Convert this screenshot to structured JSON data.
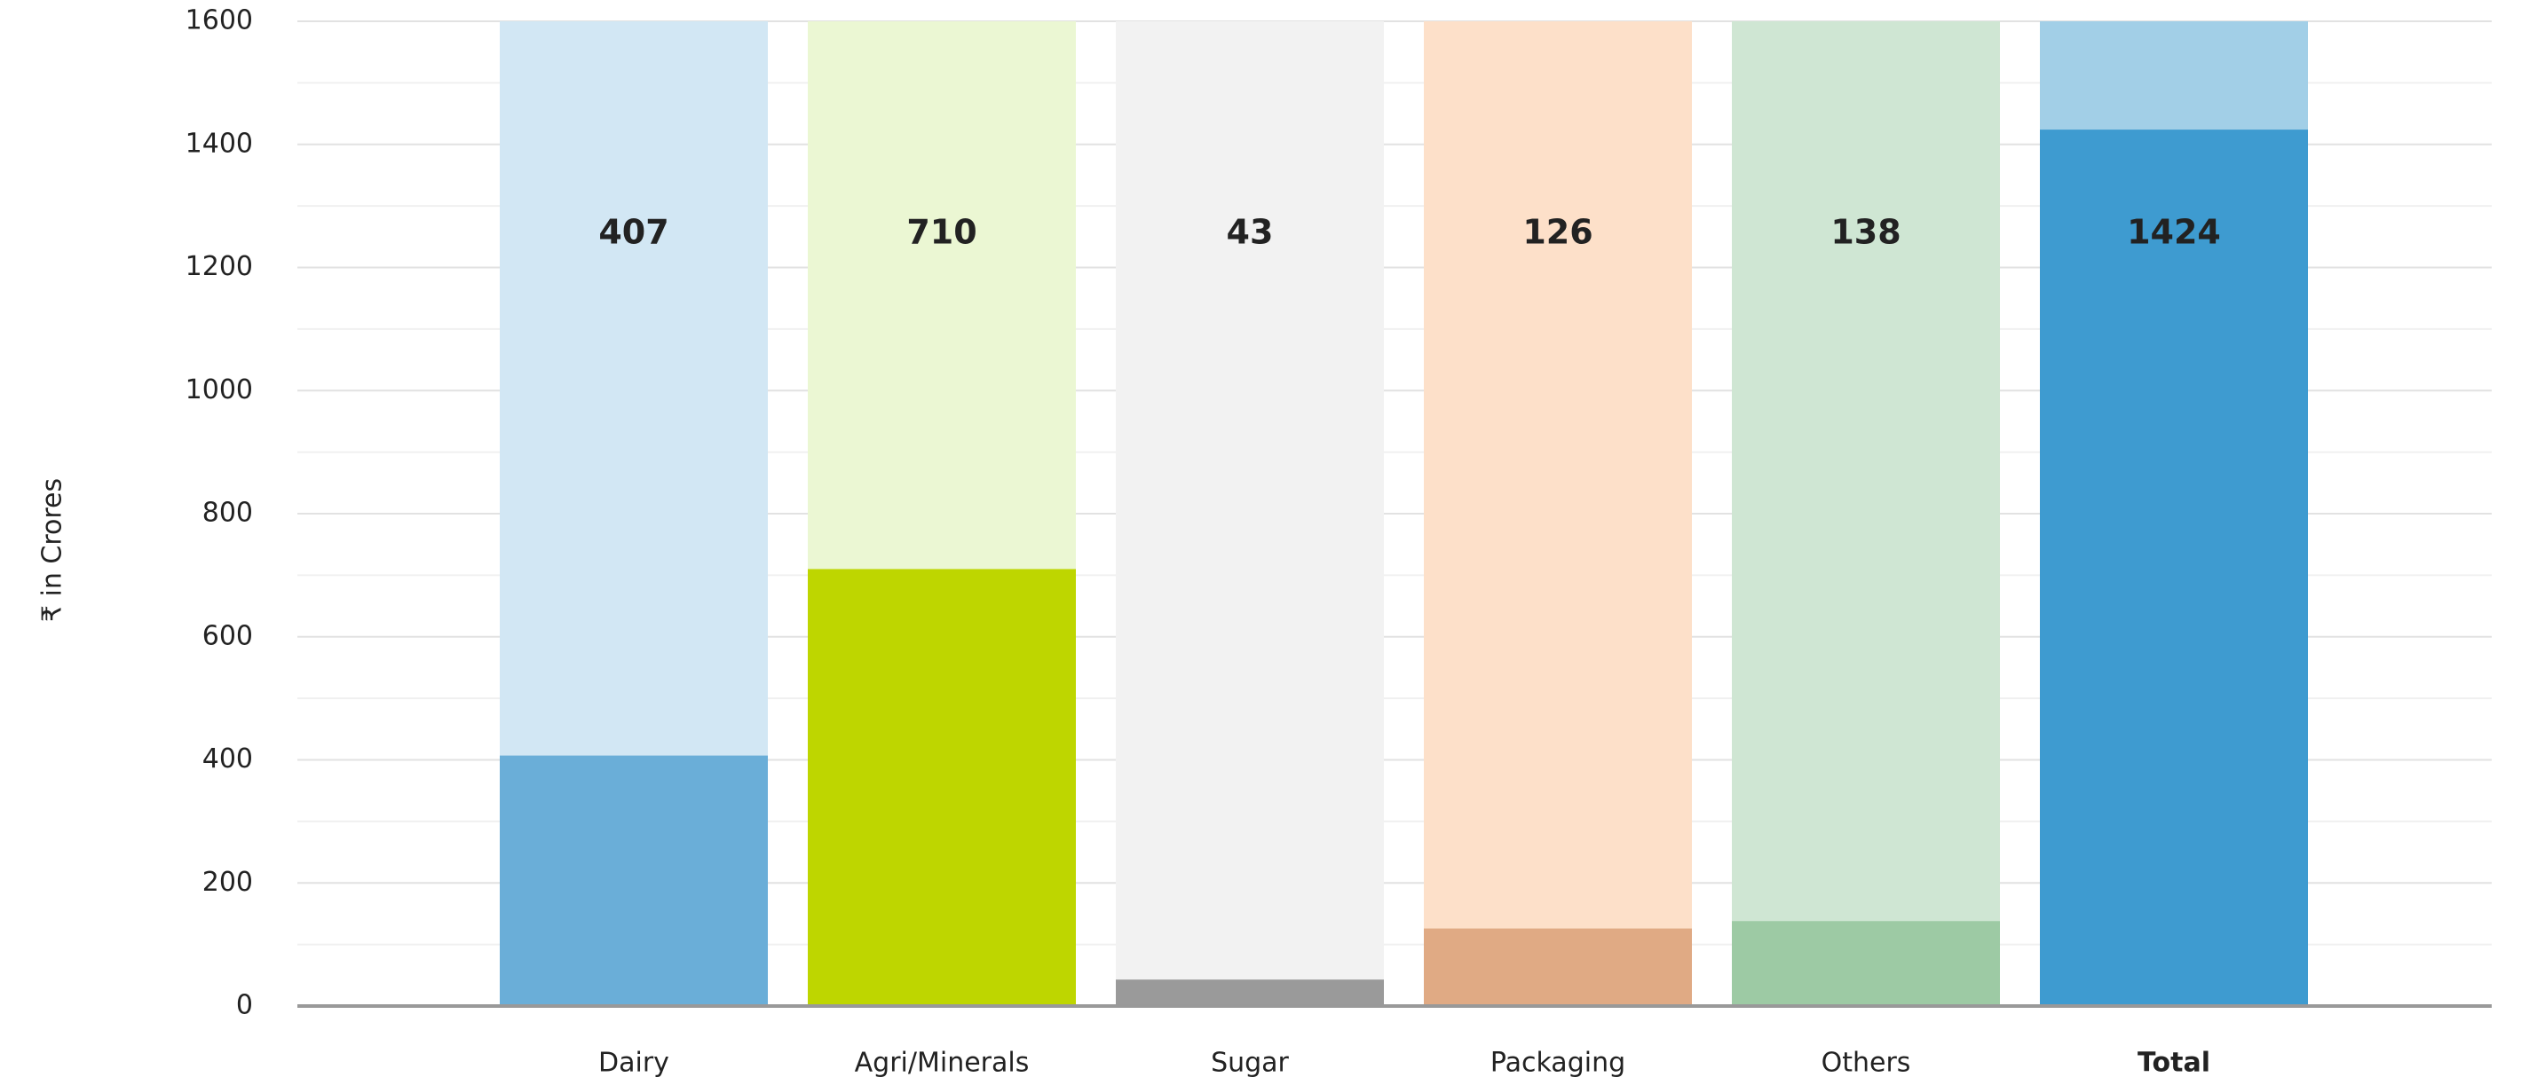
{
  "chart_data": {
    "type": "bar",
    "y_label": "₹ in Crores",
    "categories": [
      "Dairy",
      "Agri/Minerals",
      "Sugar",
      "Packaging",
      "Others",
      "Total"
    ],
    "values": [
      407,
      710,
      43,
      126,
      138,
      1424
    ],
    "colors": [
      "#6aaed8",
      "#bed600",
      "#9a9a9a",
      "#e0aa84",
      "#9dcaa4",
      "#3e9bd0"
    ],
    "background_colors": [
      "#d2e7f4",
      "#ebf7d3",
      "#f2f2f2",
      "#fde0c9",
      "#cfe6d3",
      "#a2cfe7"
    ],
    "ylim": [
      0,
      1600
    ],
    "yticks": [
      0,
      200,
      400,
      600,
      800,
      1000,
      1200,
      1400,
      1600
    ],
    "minor_yticks": [
      100,
      300,
      500,
      700,
      900,
      1100,
      1300,
      1500
    ],
    "grid": true
  }
}
